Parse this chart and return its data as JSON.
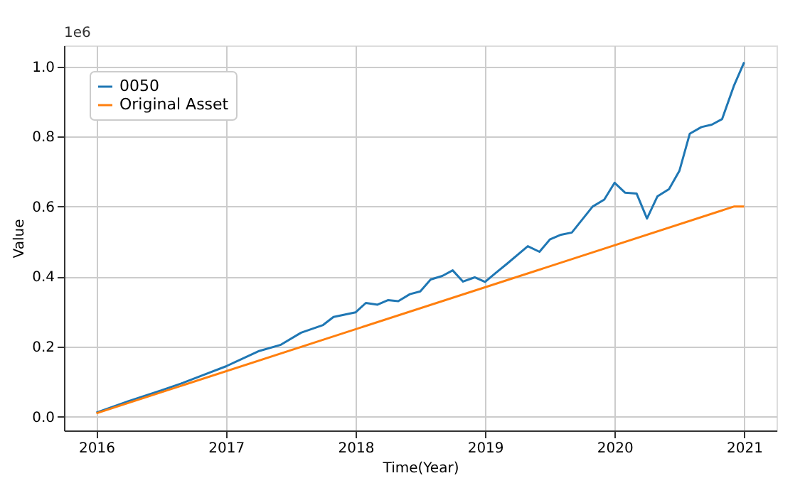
{
  "chart_data": {
    "type": "line",
    "xlabel": "Time(Year)",
    "ylabel": "Value",
    "annotations": [
      "1e6"
    ],
    "series": [
      {
        "name": "0050",
        "color": "#1f77b4",
        "x": [
          2016.0,
          2016.25,
          2016.5,
          2016.67,
          2016.83,
          2017.0,
          2017.25,
          2017.42,
          2017.58,
          2017.75,
          2017.83,
          2018.0,
          2018.08,
          2018.17,
          2018.25,
          2018.33,
          2018.42,
          2018.5,
          2018.58,
          2018.67,
          2018.75,
          2018.83,
          2018.92,
          2019.0,
          2019.08,
          2019.17,
          2019.33,
          2019.42,
          2019.5,
          2019.58,
          2019.67,
          2019.83,
          2019.92,
          2020.0,
          2020.08,
          2020.17,
          2020.25,
          2020.33,
          2020.42,
          2020.5,
          2020.58,
          2020.67,
          2020.75,
          2020.83,
          2020.92,
          2021.0
        ],
        "values": [
          0.012,
          0.045,
          0.075,
          0.097,
          0.12,
          0.144,
          0.187,
          0.205,
          0.24,
          0.262,
          0.285,
          0.298,
          0.325,
          0.32,
          0.333,
          0.33,
          0.35,
          0.358,
          0.392,
          0.402,
          0.418,
          0.386,
          0.398,
          0.385,
          0.41,
          0.437,
          0.487,
          0.471,
          0.506,
          0.519,
          0.526,
          0.6,
          0.62,
          0.668,
          0.64,
          0.637,
          0.566,
          0.629,
          0.65,
          0.702,
          0.808,
          0.827,
          0.834,
          0.85,
          0.944,
          1.012
        ]
      },
      {
        "name": "Original Asset",
        "color": "#ff7f0e",
        "x": [
          2016.0,
          2020.92,
          2021.0
        ],
        "values": [
          0.01,
          0.6,
          0.6
        ]
      }
    ],
    "xlim": [
      2015.75,
      2021.25
    ],
    "xticks": [
      2016,
      2017,
      2018,
      2019,
      2020,
      2021
    ],
    "ylim": [
      -0.039,
      1.06
    ],
    "yticks": [
      {
        "value": 0,
        "label": "0.0"
      },
      {
        "value": 0.2,
        "label": "0.2"
      },
      {
        "value": 0.4,
        "label": "0.4"
      },
      {
        "value": 0.6,
        "label": "0.6"
      },
      {
        "value": 0.8,
        "label": "0.8"
      },
      {
        "value": 1,
        "label": "1.0"
      }
    ],
    "grid": true,
    "legend": "top left",
    "line_style": "solid"
  }
}
